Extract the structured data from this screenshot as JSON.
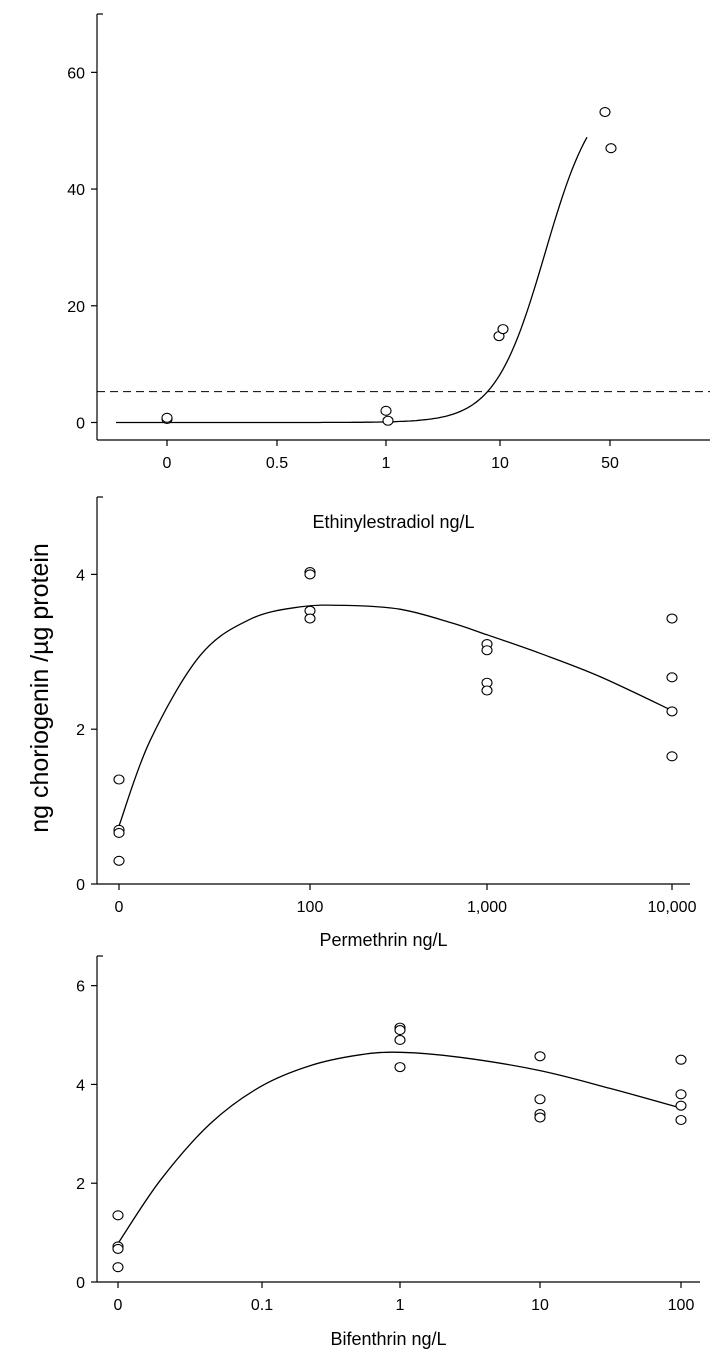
{
  "shared_ylabel": "ng choriogenin /µg protein",
  "chart_data": [
    {
      "type": "scatter",
      "xlabel": "Ethinylestradiol ng/L",
      "x_ticks": [
        "0",
        "0.5",
        "1",
        "10",
        "50"
      ],
      "y_ticks": [
        0,
        20,
        40,
        60
      ],
      "ylim": [
        -3,
        70
      ],
      "x_scale": "categorical dose (unequal spacing)",
      "reference_line": {
        "y": 5.3,
        "style": "dashed"
      },
      "points": [
        {
          "x": "0",
          "y": 0.6
        },
        {
          "x": "0",
          "y": 0.8
        },
        {
          "x": "1",
          "y": 2.0
        },
        {
          "x": "1",
          "y": 0.3
        },
        {
          "x": "10",
          "y": 14.8
        },
        {
          "x": "10",
          "y": 16.0
        },
        {
          "x": "50",
          "y": 53.2
        },
        {
          "x": "50",
          "y": 47.0
        }
      ],
      "fit_curve": true
    },
    {
      "type": "scatter",
      "xlabel": "Permethrin ng/L",
      "x_ticks": [
        "0",
        "100",
        "1,000",
        "10,000"
      ],
      "y_ticks": [
        0,
        2,
        4
      ],
      "ylim": [
        0,
        5
      ],
      "points": [
        {
          "x": "0",
          "y": 1.35
        },
        {
          "x": "0",
          "y": 0.7
        },
        {
          "x": "0",
          "y": 0.66
        },
        {
          "x": "0",
          "y": 0.3
        },
        {
          "x": "100",
          "y": 4.03
        },
        {
          "x": "100",
          "y": 4.0
        },
        {
          "x": "100",
          "y": 3.53
        },
        {
          "x": "100",
          "y": 3.43
        },
        {
          "x": "1,000",
          "y": 3.1
        },
        {
          "x": "1,000",
          "y": 3.02
        },
        {
          "x": "1,000",
          "y": 2.6
        },
        {
          "x": "1,000",
          "y": 2.5
        },
        {
          "x": "10,000",
          "y": 3.43
        },
        {
          "x": "10,000",
          "y": 2.67
        },
        {
          "x": "10,000",
          "y": 2.23
        },
        {
          "x": "10,000",
          "y": 1.65
        }
      ],
      "fit_curve": true
    },
    {
      "type": "scatter",
      "xlabel": "Bifenthrin ng/L",
      "x_ticks": [
        "0",
        "0.1",
        "1",
        "10",
        "100"
      ],
      "y_ticks": [
        0,
        2,
        4,
        6
      ],
      "ylim": [
        0,
        6.6
      ],
      "points": [
        {
          "x": "0",
          "y": 1.35
        },
        {
          "x": "0",
          "y": 0.72
        },
        {
          "x": "0",
          "y": 0.67
        },
        {
          "x": "0",
          "y": 0.3
        },
        {
          "x": "1",
          "y": 5.15
        },
        {
          "x": "1",
          "y": 5.1
        },
        {
          "x": "1",
          "y": 4.9
        },
        {
          "x": "1",
          "y": 4.35
        },
        {
          "x": "10",
          "y": 4.57
        },
        {
          "x": "10",
          "y": 3.7
        },
        {
          "x": "10",
          "y": 3.4
        },
        {
          "x": "10",
          "y": 3.33
        },
        {
          "x": "100",
          "y": 4.5
        },
        {
          "x": "100",
          "y": 3.8
        },
        {
          "x": "100",
          "y": 3.57
        },
        {
          "x": "100",
          "y": 3.28
        }
      ],
      "fit_curve": true
    }
  ]
}
